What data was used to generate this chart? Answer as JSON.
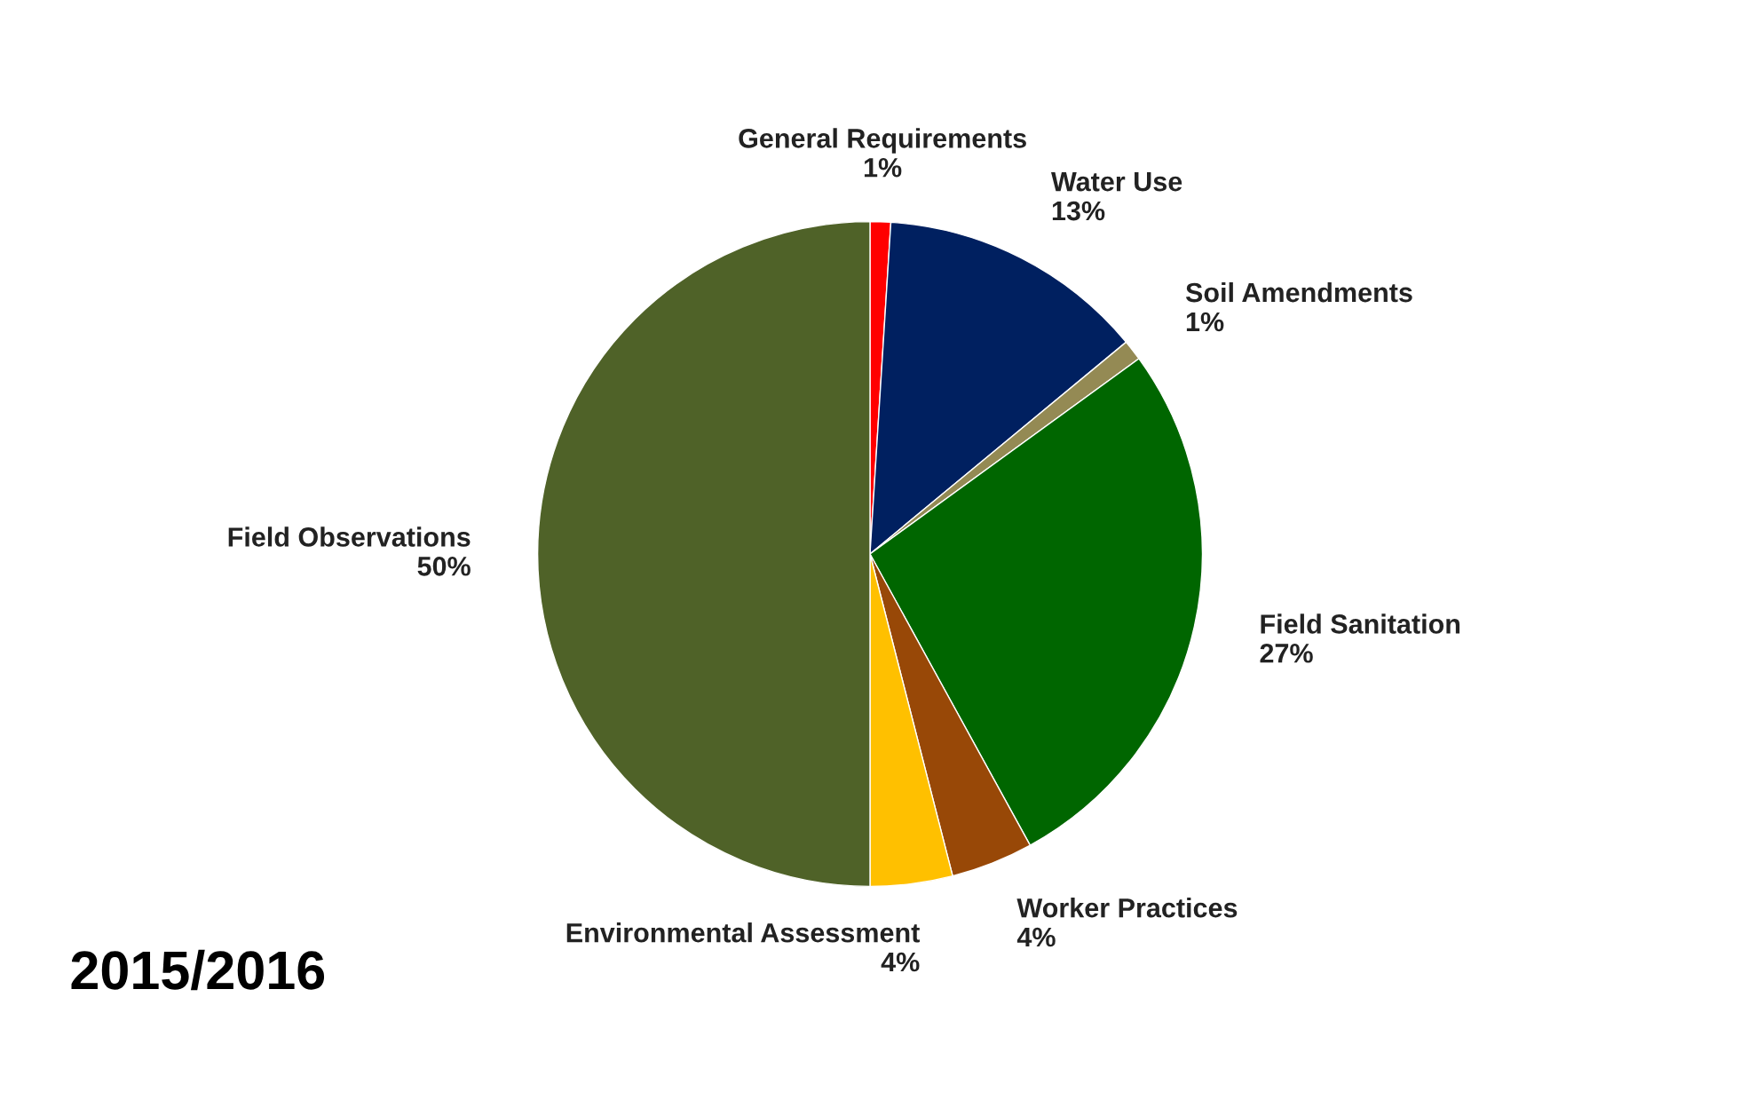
{
  "chart_data": {
    "type": "pie",
    "title": "2015/2016",
    "categories": [
      "General Requirements",
      "Water Use",
      "Soil Amendments",
      "Field Sanitation",
      "Worker Practices",
      "Environmental Assessment",
      "Field Observations"
    ],
    "values": [
      1,
      13,
      1,
      27,
      4,
      4,
      50
    ],
    "value_labels": [
      "1%",
      "13%",
      "1%",
      "27%",
      "4%",
      "4%",
      "50%"
    ],
    "colors": [
      "#ff0000",
      "#002060",
      "#948a54",
      "#006600",
      "#984807",
      "#ffc000",
      "#4f6228"
    ]
  }
}
